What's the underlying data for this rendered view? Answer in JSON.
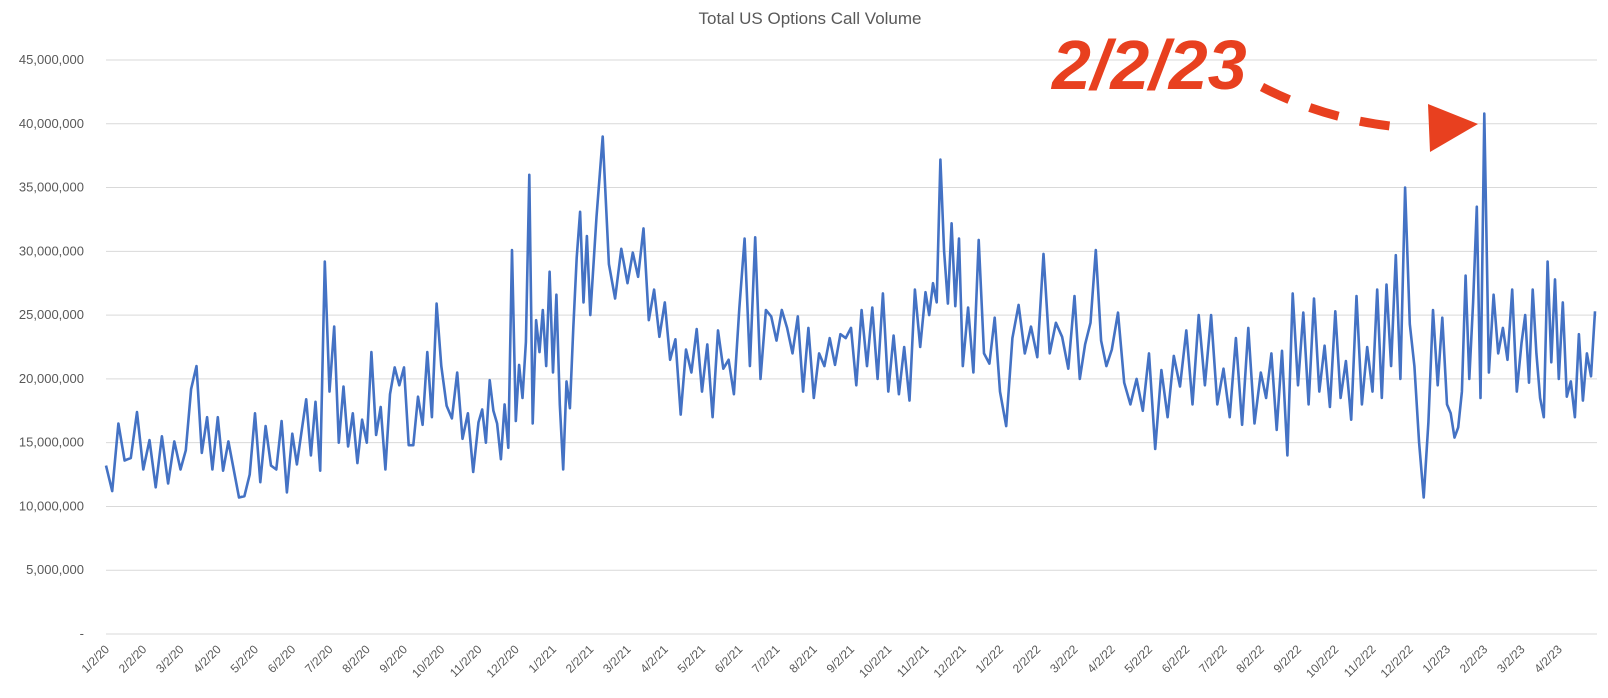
{
  "chart_data": {
    "type": "line",
    "title": "Total US Options Call Volume",
    "xlabel": "",
    "ylabel": "",
    "ylim": [
      0,
      45000000
    ],
    "y_ticks": [
      0,
      5000000,
      10000000,
      15000000,
      20000000,
      25000000,
      30000000,
      35000000,
      40000000,
      45000000
    ],
    "y_tick_labels": [
      "-",
      "5,000,000",
      "10,000,000",
      "15,000,000",
      "20,000,000",
      "25,000,000",
      "30,000,000",
      "35,000,000",
      "40,000,000",
      "45,000,000"
    ],
    "grid": true,
    "legend": "none",
    "x_tick_labels": [
      "1/2/20",
      "2/2/20",
      "3/2/20",
      "4/2/20",
      "5/2/20",
      "6/2/20",
      "7/2/20",
      "8/2/20",
      "9/2/20",
      "10/2/20",
      "11/2/20",
      "12/2/20",
      "1/2/21",
      "2/2/21",
      "3/2/21",
      "4/2/21",
      "5/2/21",
      "6/2/21",
      "7/2/21",
      "8/2/21",
      "9/2/21",
      "10/2/21",
      "11/2/21",
      "12/2/21",
      "1/2/22",
      "2/2/22",
      "3/2/22",
      "4/2/22",
      "5/2/22",
      "6/2/22",
      "7/2/22",
      "8/2/22",
      "9/2/22",
      "10/2/22",
      "11/2/22",
      "12/2/22",
      "1/2/23",
      "2/2/23",
      "3/2/23",
      "4/2/23"
    ],
    "series": [
      {
        "name": "Total US Options Call Volume",
        "color": "#4472C4",
        "unit": "millions",
        "values_by_month": [
          [
            13.2,
            11.2,
            16.5,
            13.6,
            13.8,
            17.4
          ],
          [
            12.9,
            15.2,
            11.5,
            15.5,
            11.8,
            15.1
          ],
          [
            12.9,
            14.4,
            19.2,
            21.0,
            14.2,
            17.0,
            12.9
          ],
          [
            17.0,
            12.8,
            15.1,
            12.9,
            10.7,
            10.8,
            12.5
          ],
          [
            17.3,
            11.9,
            16.3,
            13.2,
            12.9,
            16.7,
            11.1
          ],
          [
            15.7,
            13.3,
            15.9,
            18.4,
            14.0,
            18.2,
            12.8,
            29.2
          ],
          [
            19.0,
            24.1,
            15.0,
            19.4,
            14.7,
            17.3,
            13.4,
            16.8
          ],
          [
            15.0,
            22.1,
            15.6,
            17.8,
            12.9,
            18.8,
            20.9,
            19.5
          ],
          [
            20.9,
            14.8,
            14.8,
            18.6,
            16.4,
            22.1,
            17.0,
            25.9
          ],
          [
            21.0,
            17.9,
            16.9,
            20.5,
            15.3,
            17.3,
            12.7
          ],
          [
            16.6,
            17.6,
            15.0,
            19.9,
            17.5,
            16.5,
            13.7,
            18.0,
            14.6,
            30.1
          ],
          [
            16.7,
            21.1,
            18.5,
            22.9,
            36.0,
            16.5,
            24.6,
            22.1,
            25.4,
            21.0,
            28.4
          ],
          [
            20.5,
            26.6,
            18.0,
            12.9,
            19.8,
            17.7,
            24.0,
            29.5,
            33.1,
            26.0,
            31.2
          ],
          [
            25.0,
            32.7,
            39.0,
            29.0,
            26.3,
            30.2
          ],
          [
            27.5,
            29.9,
            28.0,
            31.8,
            24.6,
            27.0,
            23.3
          ],
          [
            26.0,
            21.5,
            23.1,
            17.2,
            22.3,
            20.5,
            23.9
          ],
          [
            19.0,
            22.7,
            17.0,
            23.8,
            20.8,
            21.5,
            18.8
          ],
          [
            25.5,
            31.0,
            21.0,
            31.1,
            20.0,
            25.4,
            24.9
          ],
          [
            23.0,
            25.4,
            24.0,
            22.0,
            24.9,
            19.0,
            24.0
          ],
          [
            18.5,
            22.0,
            21.0,
            23.2,
            21.1,
            23.5,
            23.2
          ],
          [
            24.0,
            19.5,
            25.4,
            21.0,
            25.6,
            20.0,
            26.7
          ],
          [
            19.0,
            23.4,
            18.8,
            22.5,
            18.3,
            27.0,
            22.5
          ],
          [
            26.8,
            25.0,
            27.5,
            26.0,
            37.2,
            30.0,
            25.9,
            32.2,
            25.7,
            31.0
          ],
          [
            21.0,
            25.6,
            20.5,
            30.9,
            22.0,
            21.2,
            24.8
          ],
          [
            19.0,
            16.3,
            23.2,
            25.8,
            22.0,
            24.1
          ],
          [
            21.7,
            29.8,
            22.0,
            24.4,
            23.3,
            20.8
          ],
          [
            26.5,
            20.0,
            22.7,
            24.4,
            30.1,
            23.0,
            21.0
          ],
          [
            22.3,
            25.2,
            19.7,
            18.0,
            20.0,
            17.5
          ],
          [
            22.0,
            14.5,
            20.7,
            17.0,
            21.8,
            19.4
          ],
          [
            23.8,
            18.0,
            25.0,
            19.5,
            25.0,
            18.0
          ],
          [
            20.8,
            17.0,
            23.2,
            16.4,
            24.0,
            16.5
          ],
          [
            20.5,
            18.5,
            22.0,
            16.0,
            22.2,
            14.0,
            26.7
          ],
          [
            19.5,
            25.2,
            18.0,
            26.3,
            19.0,
            22.6,
            17.8
          ],
          [
            25.3,
            18.5,
            21.4,
            16.8,
            26.5,
            18.0,
            22.5
          ],
          [
            19.0,
            27.0,
            18.5,
            27.4,
            21.0,
            29.7,
            20.0,
            35.0
          ],
          [
            24.3,
            21.0,
            15.0,
            10.7,
            16.6,
            25.4,
            19.5,
            24.8
          ],
          [
            18.0,
            17.3,
            15.4,
            16.2,
            19.0,
            28.1,
            20.0,
            26.0,
            33.5,
            18.5
          ],
          [
            40.8,
            20.5,
            26.6,
            22.0,
            24.0,
            21.5,
            27.0,
            19.0
          ],
          [
            22.8,
            25.0,
            19.7,
            27.0,
            22.0,
            18.5,
            17.0,
            29.2,
            21.3,
            27.8
          ],
          [
            20.0,
            26.0,
            18.6,
            19.8,
            17.0,
            23.5,
            18.3,
            22.0,
            20.2,
            25.3
          ]
        ]
      }
    ],
    "annotations": [
      {
        "text": "2/2/23",
        "target_date": "2/2/23",
        "target_value": 40800000,
        "color": "#E8401F",
        "style": "dashed-arrow"
      }
    ]
  }
}
